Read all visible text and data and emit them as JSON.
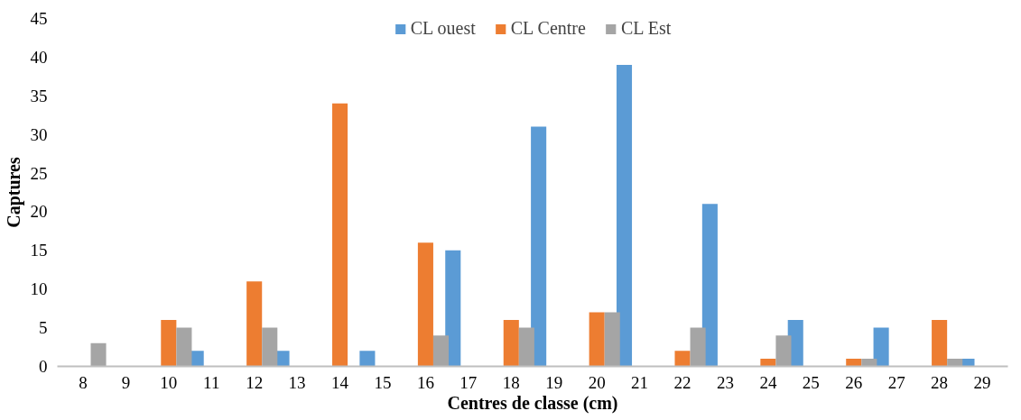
{
  "chart_data": {
    "type": "bar",
    "xlabel": "Centres de classe (cm)",
    "ylabel": "Captures",
    "categories": [
      "8",
      "9",
      "10",
      "11",
      "12",
      "13",
      "14",
      "15",
      "16",
      "17",
      "18",
      "19",
      "20",
      "21",
      "22",
      "23",
      "24",
      "25",
      "26",
      "27",
      "28",
      "29"
    ],
    "series": [
      {
        "name": "CL ouest",
        "color": "#5b9bd5",
        "values": [
          0,
          0,
          0,
          2,
          0,
          2,
          0,
          2,
          0,
          15,
          0,
          31,
          0,
          39,
          0,
          21,
          0,
          6,
          0,
          5,
          0,
          1
        ]
      },
      {
        "name": "CL Centre",
        "color": "#ed7d31",
        "values": [
          0,
          0,
          6,
          0,
          11,
          0,
          34,
          0,
          16,
          0,
          6,
          0,
          7,
          0,
          2,
          0,
          1,
          0,
          1,
          0,
          6,
          0
        ]
      },
      {
        "name": "CL Est",
        "color": "#a5a5a5",
        "values": [
          3,
          0,
          5,
          0,
          5,
          0,
          0,
          0,
          4,
          0,
          5,
          0,
          7,
          0,
          5,
          0,
          4,
          0,
          1,
          0,
          1,
          0
        ]
      }
    ],
    "ylim": [
      0,
      45
    ],
    "yticks": [
      0,
      5,
      10,
      15,
      20,
      25,
      30,
      35,
      40,
      45
    ],
    "grid": false,
    "legend": "top"
  }
}
